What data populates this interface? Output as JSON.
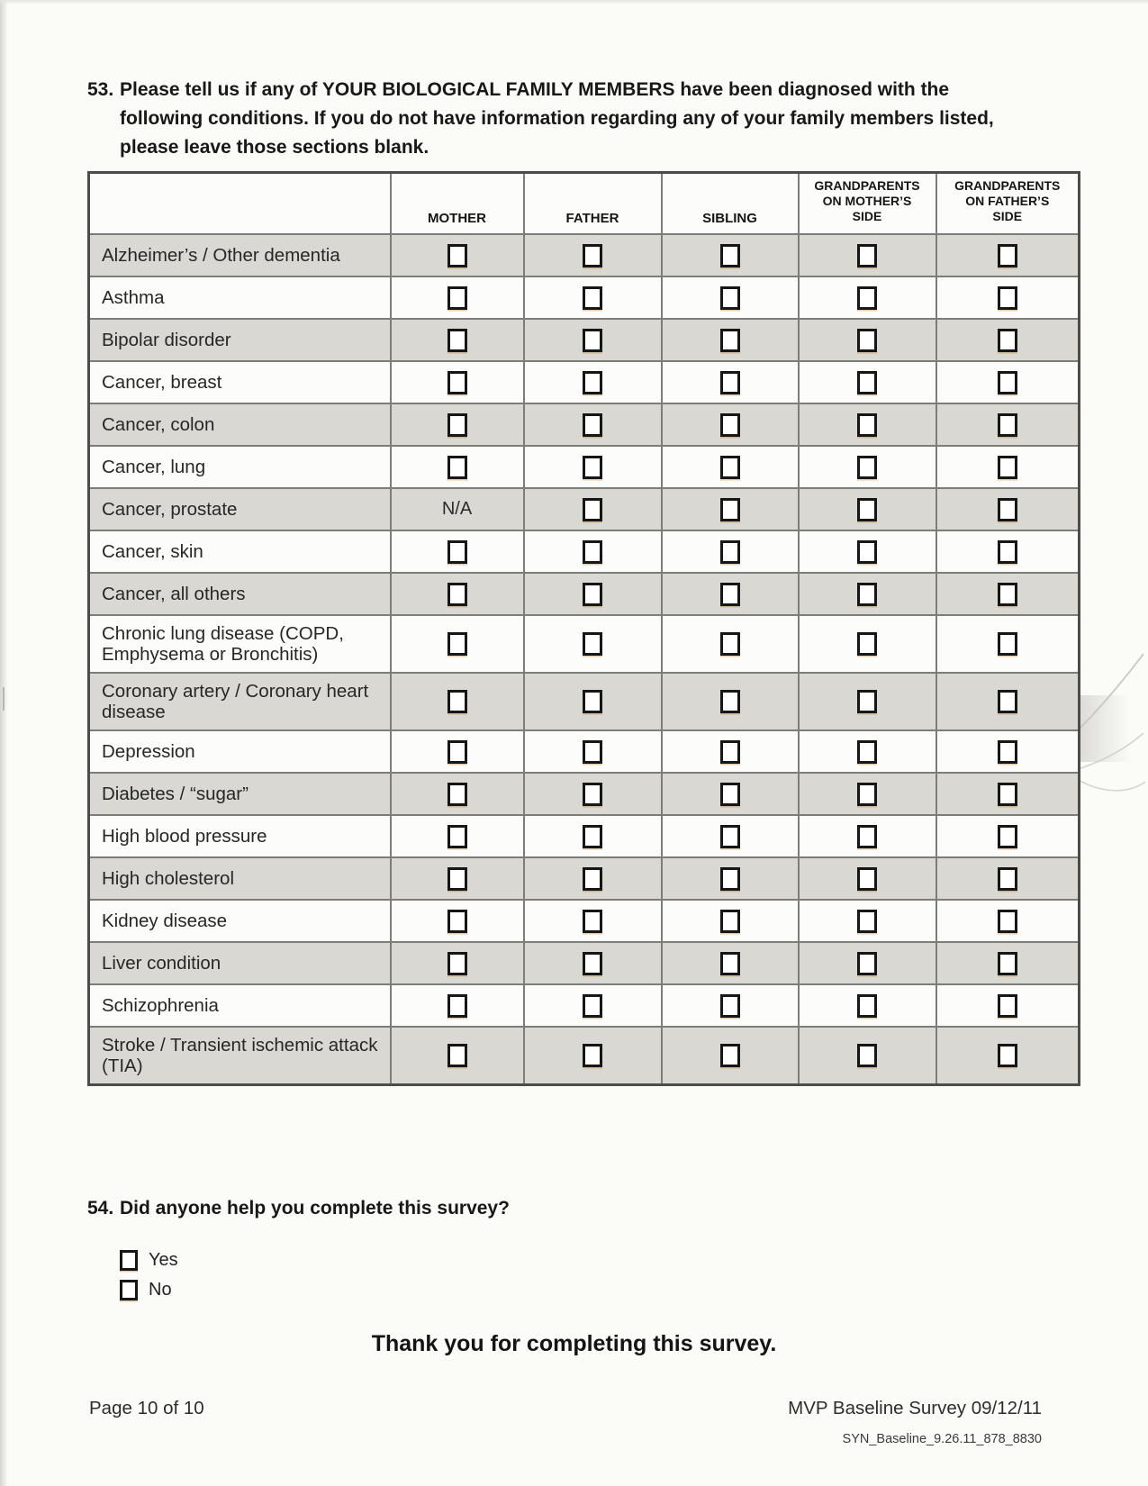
{
  "question53": {
    "number": "53.",
    "text": "Please tell us if any of YOUR BIOLOGICAL FAMILY MEMBERS have been diagnosed with the following conditions.  If you do not have information regarding any of your family members listed, please leave those sections blank."
  },
  "table": {
    "columns": [
      {
        "key": "mother",
        "label": "MOTHER"
      },
      {
        "key": "father",
        "label": "FATHER"
      },
      {
        "key": "sibling",
        "label": "SIBLING"
      },
      {
        "key": "grandparents-mothers-side",
        "label": "GRANDPARENTS\nON MOTHER’S\nSIDE"
      },
      {
        "key": "grandparents-fathers-side",
        "label": "GRANDPARENTS\nON FATHER’S\nSIDE"
      }
    ],
    "rows": [
      {
        "label": "Alzheimer’s / Other dementia",
        "cells": [
          "checkbox",
          "checkbox",
          "checkbox",
          "checkbox",
          "checkbox"
        ]
      },
      {
        "label": "Asthma",
        "cells": [
          "checkbox",
          "checkbox",
          "checkbox",
          "checkbox",
          "checkbox"
        ]
      },
      {
        "label": "Bipolar disorder",
        "cells": [
          "checkbox",
          "checkbox",
          "checkbox",
          "checkbox",
          "checkbox"
        ]
      },
      {
        "label": "Cancer, breast",
        "cells": [
          "checkbox",
          "checkbox",
          "checkbox",
          "checkbox",
          "checkbox"
        ]
      },
      {
        "label": "Cancer, colon",
        "cells": [
          "checkbox",
          "checkbox",
          "checkbox",
          "checkbox",
          "checkbox"
        ]
      },
      {
        "label": "Cancer, lung",
        "cells": [
          "checkbox",
          "checkbox",
          "checkbox",
          "checkbox",
          "checkbox"
        ]
      },
      {
        "label": "Cancer, prostate",
        "cells": [
          "N/A",
          "checkbox",
          "checkbox",
          "checkbox",
          "checkbox"
        ]
      },
      {
        "label": "Cancer, skin",
        "cells": [
          "checkbox",
          "checkbox",
          "checkbox",
          "checkbox",
          "checkbox"
        ]
      },
      {
        "label": "Cancer, all others",
        "cells": [
          "checkbox",
          "checkbox",
          "checkbox",
          "checkbox",
          "checkbox"
        ]
      },
      {
        "label": "Chronic lung disease (COPD, Emphysema or Bronchitis)",
        "cells": [
          "checkbox",
          "checkbox",
          "checkbox",
          "checkbox",
          "checkbox"
        ]
      },
      {
        "label": "Coronary artery / Coronary heart disease",
        "cells": [
          "checkbox",
          "checkbox",
          "checkbox",
          "checkbox",
          "checkbox"
        ]
      },
      {
        "label": "Depression",
        "cells": [
          "checkbox",
          "checkbox",
          "checkbox",
          "checkbox",
          "checkbox"
        ]
      },
      {
        "label": "Diabetes / “sugar”",
        "cells": [
          "checkbox",
          "checkbox",
          "checkbox",
          "checkbox",
          "checkbox"
        ]
      },
      {
        "label": "High blood pressure",
        "cells": [
          "checkbox",
          "checkbox",
          "checkbox",
          "checkbox",
          "checkbox"
        ]
      },
      {
        "label": "High cholesterol",
        "cells": [
          "checkbox",
          "checkbox",
          "checkbox",
          "checkbox",
          "checkbox"
        ]
      },
      {
        "label": "Kidney disease",
        "cells": [
          "checkbox",
          "checkbox",
          "checkbox",
          "checkbox",
          "checkbox"
        ]
      },
      {
        "label": "Liver condition",
        "cells": [
          "checkbox",
          "checkbox",
          "checkbox",
          "checkbox",
          "checkbox"
        ]
      },
      {
        "label": "Schizophrenia",
        "cells": [
          "checkbox",
          "checkbox",
          "checkbox",
          "checkbox",
          "checkbox"
        ]
      },
      {
        "label": "Stroke / Transient ischemic attack (TIA)",
        "cells": [
          "checkbox",
          "checkbox",
          "checkbox",
          "checkbox",
          "checkbox"
        ]
      }
    ]
  },
  "question54": {
    "number": "54.",
    "text": "Did anyone help you complete this survey?",
    "options": [
      {
        "label": "Yes"
      },
      {
        "label": "No"
      }
    ]
  },
  "closing_text": "Thank you for completing this survey.",
  "footer": {
    "page_indicator": "Page 10 of 10",
    "survey_title": "MVP Baseline Survey 09/12/11",
    "form_code": "SYN_Baseline_9.26.11_878_8830"
  },
  "colors": {
    "row_shade": "#d9d8d3",
    "checkbox_border": "#161616",
    "table_border": "#4c4c48"
  }
}
